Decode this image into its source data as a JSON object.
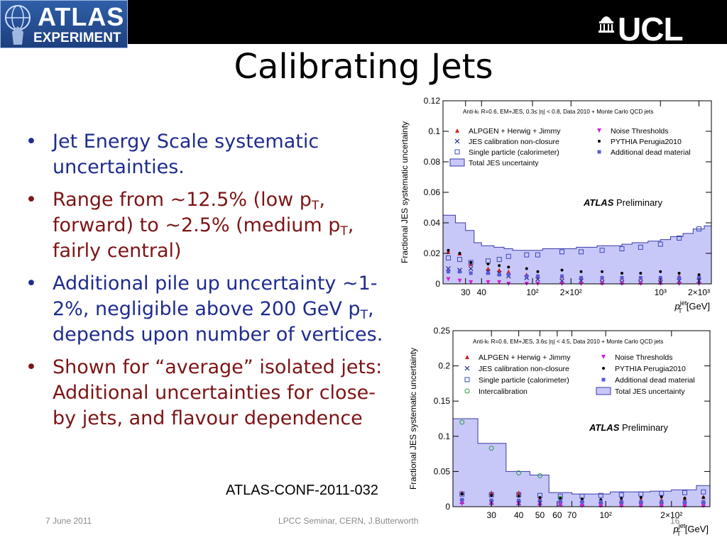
{
  "logos": {
    "atlas_line1": "ATLAS",
    "atlas_line2": "EXPERIMENT",
    "ucl": "UCL"
  },
  "slide": {
    "title": "Calibrating Jets",
    "bullets": [
      {
        "color": "#1f2b8e",
        "parts": [
          {
            "t": "Jet Energy Scale systematic uncertainties."
          }
        ]
      },
      {
        "color": "#7d1416",
        "parts": [
          {
            "t": "Range from ~12.5% (low p"
          },
          {
            "t": "T",
            "sub": true
          },
          {
            "t": ", forward) to ~2.5% (medium p"
          },
          {
            "t": "T",
            "sub": true
          },
          {
            "t": ", fairly central)"
          }
        ]
      },
      {
        "color": "#1f2b8e",
        "parts": [
          {
            "t": "Additional pile up uncertainty ~1-2%, negligible above 200 GeV p"
          },
          {
            "t": "T",
            "sub": true
          },
          {
            "t": ", depends upon number of vertices."
          }
        ]
      },
      {
        "color": "#7d1416",
        "parts": [
          {
            "t": "Shown for “average” isolated jets: Additional uncertainties for close-by jets, and flavour dependence"
          }
        ]
      }
    ],
    "reference": "ATLAS-CONF-2011-032",
    "footer": {
      "date": "7 June 2011",
      "center": "LPCC Seminar, CERN, J.Butterworth",
      "page": "16"
    }
  },
  "chart_data": [
    {
      "type": "area",
      "title": "Anti-k_t R=0.6, EM+JES, 0.3≤ |η| < 0.8, Data 2010 + Monte Carlo QCD jets",
      "annotation": "ATLAS Preliminary",
      "xlabel": "p_T^jet [GeV]",
      "ylabel": "Fractional JES systematic uncertainty",
      "xscale": "log",
      "xlim": [
        20,
        2500
      ],
      "ylim": [
        0,
        0.12
      ],
      "yticks": [
        0,
        0.02,
        0.04,
        0.06,
        0.08,
        0.1,
        0.12
      ],
      "xticklabels": [
        "30",
        "40",
        "10²",
        "2×10²",
        "10³",
        "2×10³"
      ],
      "legend_columns": [
        [
          "ALPGEN + Herwig + Jimmy",
          "JES calibration non-closure",
          "Single particle (calorimeter)",
          "Total JES uncertainty"
        ],
        [
          "Noise Thresholds",
          "PYTHIA Perugia2010",
          "Additional dead material"
        ]
      ],
      "total_band": {
        "bin_edges": [
          20,
          25,
          30,
          35,
          40,
          50,
          60,
          70,
          80,
          100,
          120,
          150,
          180,
          220,
          260,
          320,
          400,
          500,
          600,
          800,
          1000,
          1200,
          1500,
          1800,
          2200,
          2500
        ],
        "values": [
          0.045,
          0.04,
          0.035,
          0.027,
          0.025,
          0.024,
          0.023,
          0.022,
          0.022,
          0.022,
          0.023,
          0.023,
          0.023,
          0.024,
          0.024,
          0.025,
          0.025,
          0.026,
          0.027,
          0.028,
          0.029,
          0.031,
          0.033,
          0.036,
          0.038
        ]
      },
      "series": [
        {
          "name": "ALPGEN + Herwig + Jimmy",
          "color": "#d62020",
          "marker": "triangle",
          "x": [
            22,
            27,
            33,
            45,
            55,
            65,
            90,
            110,
            170,
            240,
            350,
            500,
            700,
            1000,
            1400,
            2000
          ],
          "values": [
            0.021,
            0.02,
            0.013,
            0.01,
            0.009,
            0.008,
            0.006,
            0.005,
            0.005,
            0.004,
            0.004,
            0.004,
            0.004,
            0.004,
            0.005,
            0.005
          ]
        },
        {
          "name": "JES calibration non-closure",
          "color": "#1f2b8e",
          "marker": "x",
          "x": [
            22,
            27,
            33,
            45,
            55,
            65,
            90,
            110,
            170,
            240,
            350,
            500,
            700,
            1000,
            1400,
            2000
          ],
          "values": [
            0.01,
            0.009,
            0.01,
            0.008,
            0.007,
            0.005,
            0.004,
            0.003,
            0.002,
            0.002,
            0.001,
            0.001,
            0.001,
            0.001,
            0.002,
            0.002
          ]
        },
        {
          "name": "Single particle (calorimeter)",
          "color": "#3a48b8",
          "marker": "square-open",
          "x": [
            22,
            27,
            33,
            45,
            55,
            65,
            90,
            110,
            170,
            240,
            350,
            500,
            700,
            1000,
            1400,
            2000
          ],
          "values": [
            0.017,
            0.016,
            0.014,
            0.015,
            0.016,
            0.018,
            0.019,
            0.019,
            0.021,
            0.021,
            0.022,
            0.023,
            0.024,
            0.026,
            0.03,
            0.036
          ]
        },
        {
          "name": "Noise Thresholds",
          "color": "#d020d0",
          "marker": "triangle-down",
          "x": [
            22,
            27,
            33,
            45,
            55,
            65,
            90,
            110,
            170,
            240,
            350,
            500,
            700,
            1000,
            1400,
            2000
          ],
          "values": [
            0.003,
            0.002,
            0.001,
            0.001,
            0.001,
            0.0,
            0.0,
            0.0,
            0.0,
            0.0,
            0.0,
            0.0,
            0.0,
            0.0,
            0.0,
            0.0
          ]
        },
        {
          "name": "PYTHIA Perugia2010",
          "color": "#000000",
          "marker": "dot",
          "x": [
            22,
            27,
            33,
            45,
            55,
            65,
            90,
            110,
            170,
            240,
            350,
            500,
            700,
            1000,
            1400,
            2000
          ],
          "values": [
            0.022,
            0.02,
            0.014,
            0.013,
            0.012,
            0.011,
            0.01,
            0.008,
            0.009,
            0.008,
            0.008,
            0.007,
            0.007,
            0.008,
            0.007,
            0.006
          ]
        },
        {
          "name": "Additional dead material",
          "color": "#5a5ad8",
          "marker": "square",
          "x": [
            22,
            27,
            33,
            45,
            55,
            65,
            90,
            110,
            170,
            240,
            350,
            500,
            700,
            1000,
            1400,
            2000
          ],
          "values": [
            0.008,
            0.008,
            0.007,
            0.007,
            0.006,
            0.006,
            0.005,
            0.005,
            0.005,
            0.004,
            0.004,
            0.004,
            0.004,
            0.004,
            0.004,
            0.004
          ]
        }
      ]
    },
    {
      "type": "area",
      "title": "Anti-k_t R=0.6, EM+JES, 3.6≤ |η| < 4.5, Data 2010 + Monte Carlo QCD jets",
      "annotation": "ATLAS Preliminary",
      "xlabel": "p_T^jet [GeV]",
      "ylabel": "Fractional JES systematic uncertainty",
      "xscale": "log",
      "xlim": [
        20,
        300
      ],
      "ylim": [
        0,
        0.25
      ],
      "yticks": [
        0,
        0.05,
        0.1,
        0.15,
        0.2,
        0.25
      ],
      "xticklabels": [
        "30",
        "40",
        "50",
        "60",
        "70",
        "10²",
        "2×10²"
      ],
      "legend_columns": [
        [
          "ALPGEN + Herwig + Jimmy",
          "JES calibration non-closure",
          "Single particle (calorimeter)",
          "Intercalibration"
        ],
        [
          "Noise Thresholds",
          "PYTHIA Perugia2010",
          "Additional dead material",
          "Total JES uncertainty"
        ]
      ],
      "total_band": {
        "bin_edges": [
          20,
          26,
          35,
          45,
          55,
          70,
          85,
          105,
          130,
          160,
          200,
          260,
          300
        ],
        "values": [
          0.125,
          0.09,
          0.05,
          0.045,
          0.02,
          0.018,
          0.018,
          0.021,
          0.021,
          0.022,
          0.024,
          0.03
        ]
      },
      "series": [
        {
          "name": "ALPGEN + Herwig + Jimmy",
          "color": "#d62020",
          "marker": "triangle",
          "x": [
            22,
            30,
            40,
            50,
            62,
            78,
            95,
            118,
            145,
            180,
            230,
            280
          ],
          "values": [
            0.02,
            0.02,
            0.02,
            0.012,
            0.01,
            0.009,
            0.008,
            0.01,
            0.01,
            0.01,
            0.012,
            0.014
          ]
        },
        {
          "name": "JES calibration non-closure",
          "color": "#1f2b8e",
          "marker": "x",
          "x": [
            22,
            30,
            40,
            50,
            62,
            78,
            95,
            118,
            145,
            180,
            230,
            280
          ],
          "values": [
            0.007,
            0.006,
            0.005,
            0.005,
            0.004,
            0.004,
            0.003,
            0.003,
            0.003,
            0.003,
            0.003,
            0.003
          ]
        },
        {
          "name": "Single particle (calorimeter)",
          "color": "#3a48b8",
          "marker": "square-open",
          "x": [
            22,
            30,
            40,
            50,
            62,
            78,
            95,
            118,
            145,
            180,
            230,
            280
          ],
          "values": [
            0.018,
            0.017,
            0.017,
            0.016,
            0.015,
            0.015,
            0.016,
            0.017,
            0.018,
            0.019,
            0.02,
            0.021
          ]
        },
        {
          "name": "Intercalibration",
          "color": "#2a9a4a",
          "marker": "circle-open",
          "x": [
            22,
            30,
            40,
            50,
            62
          ],
          "values": [
            0.12,
            0.083,
            0.048,
            0.044,
            0.012
          ]
        },
        {
          "name": "Noise Thresholds",
          "color": "#d020d0",
          "marker": "triangle-down",
          "x": [
            22,
            30,
            40,
            50,
            62,
            78,
            95,
            118,
            145,
            180,
            230,
            280
          ],
          "values": [
            0.004,
            0.003,
            0.003,
            0.002,
            0.002,
            0.001,
            0.001,
            0.001,
            0.001,
            0.001,
            0.001,
            0.001
          ]
        },
        {
          "name": "PYTHIA Perugia2010",
          "color": "#000000",
          "marker": "dot",
          "x": [
            22,
            30,
            40,
            50,
            62,
            78,
            95,
            118,
            145,
            180,
            230,
            280
          ],
          "values": [
            0.018,
            0.016,
            0.015,
            0.013,
            0.012,
            0.011,
            0.01,
            0.012,
            0.013,
            0.014,
            0.012,
            0.013
          ]
        },
        {
          "name": "Additional dead material",
          "color": "#5a5ad8",
          "marker": "square",
          "x": [
            22,
            30,
            40,
            50,
            62,
            78,
            95,
            118,
            145,
            180,
            230,
            280
          ],
          "values": [
            0.01,
            0.009,
            0.009,
            0.008,
            0.008,
            0.007,
            0.007,
            0.007,
            0.007,
            0.007,
            0.007,
            0.007
          ]
        }
      ]
    }
  ]
}
